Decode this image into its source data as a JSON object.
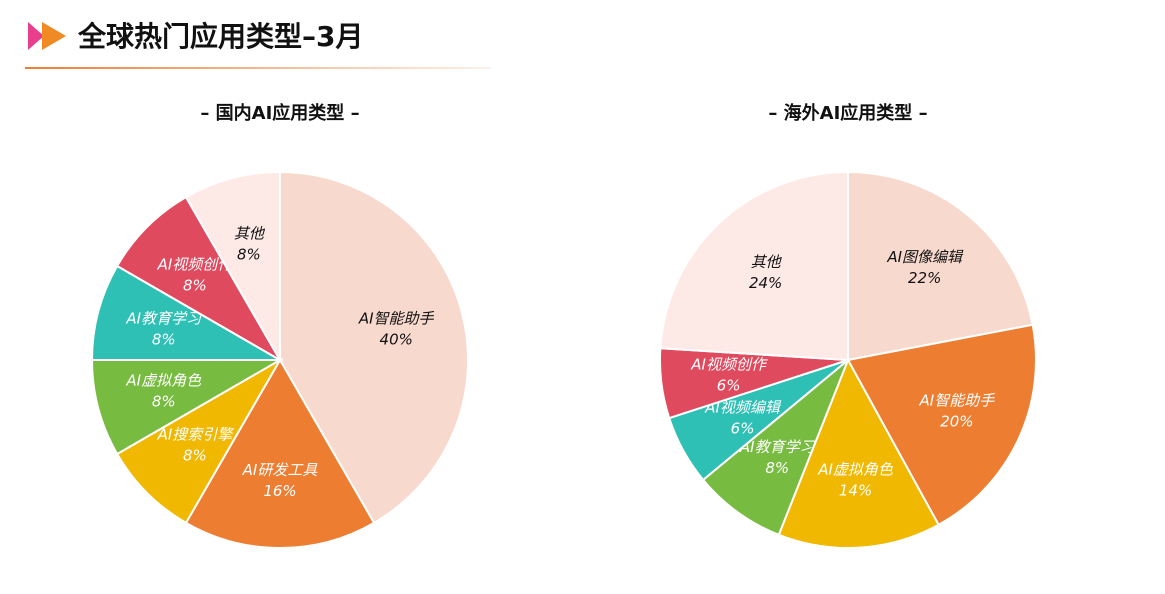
{
  "header": {
    "title": "全球热门应用类型–3月"
  },
  "chart_data": [
    {
      "type": "pie",
      "title": "– 国内AI应用类型 –",
      "categories": [
        "AI智能助手",
        "AI研发工具",
        "AI搜索引擎",
        "AI虚拟角色",
        "AI教育学习",
        "AI视频创作",
        "其他"
      ],
      "values": [
        40,
        16,
        8,
        8,
        8,
        8,
        8
      ],
      "value_labels": [
        "40%",
        "16%",
        "8%",
        "8%",
        "8%",
        "8%",
        "8%"
      ],
      "colors": [
        "#f8d9ce",
        "#ed7d31",
        "#f0b800",
        "#77bb41",
        "#2fc0b5",
        "#e04a5e",
        "#fdeae6"
      ]
    },
    {
      "type": "pie",
      "title": "– 海外AI应用类型 –",
      "categories": [
        "AI图像编辑",
        "AI智能助手",
        "AI虚拟角色",
        "AI教育学习",
        "AI视频编辑",
        "AI视频创作",
        "其他"
      ],
      "values": [
        22,
        20,
        14,
        8,
        6,
        6,
        24
      ],
      "value_labels": [
        "22%",
        "20%",
        "14%",
        "8%",
        "6%",
        "6%",
        "24%"
      ],
      "colors": [
        "#f8d9ce",
        "#ed7d31",
        "#f0b800",
        "#77bb41",
        "#2fc0b5",
        "#e04a5e",
        "#fdeae6"
      ]
    }
  ]
}
